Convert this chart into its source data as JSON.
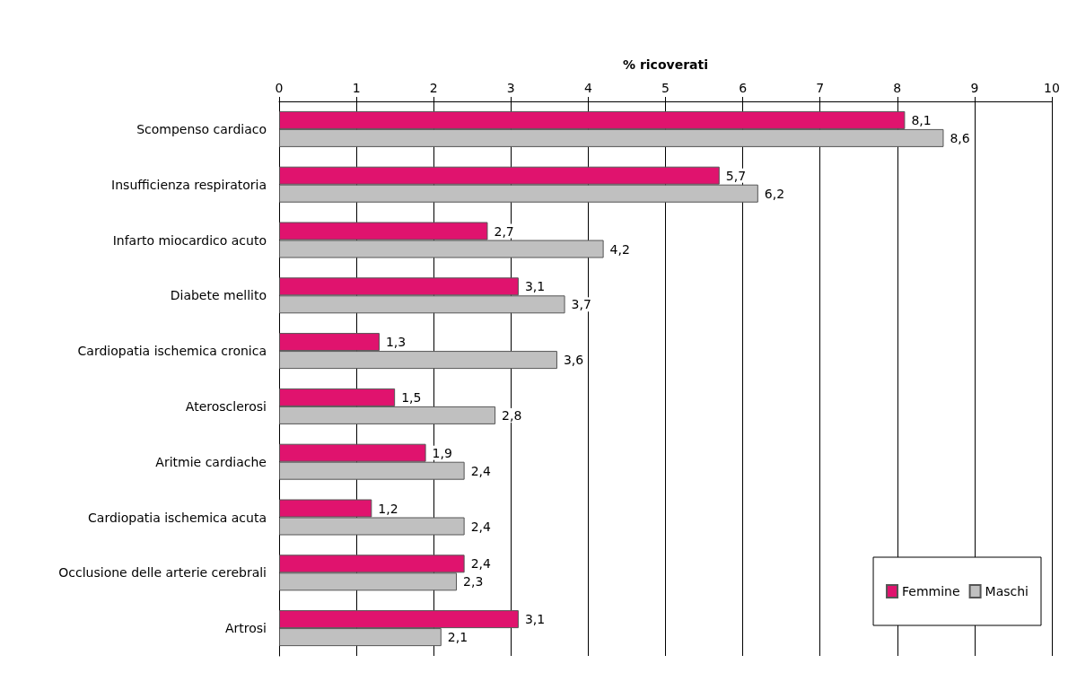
{
  "chart_data": {
    "type": "bar",
    "orientation": "horizontal",
    "xlabel": "% ricoverati",
    "categories": [
      "Scompenso cardiaco",
      "Insufficienza respiratoria",
      "Infarto miocardico acuto",
      "Diabete mellito",
      "Cardiopatia ischemica cronica",
      "Aterosclerosi",
      "Aritmie cardiache",
      "Cardiopatia ischemica acuta",
      "Occlusione delle arterie cerebrali",
      "Artrosi"
    ],
    "series": [
      {
        "name": "Femmine",
        "color": "#e0136e",
        "values": [
          8.1,
          5.7,
          2.7,
          3.1,
          1.3,
          1.5,
          1.9,
          1.2,
          2.4,
          3.1
        ],
        "value_labels": [
          "8,1",
          "5,7",
          "2,7",
          "3,1",
          "1,3",
          "1,5",
          "1,9",
          "1,2",
          "2,4",
          "3,1"
        ]
      },
      {
        "name": "Maschi",
        "color": "#c0c0c0",
        "values": [
          8.6,
          6.2,
          4.2,
          3.7,
          3.6,
          2.8,
          2.4,
          2.4,
          2.3,
          2.1
        ],
        "value_labels": [
          "8,6",
          "6,2",
          "4,2",
          "3,7",
          "3,6",
          "2,8",
          "2,4",
          "2,4",
          "2,3",
          "2,1"
        ]
      }
    ],
    "xlim": [
      0,
      10
    ],
    "xticks": [
      0,
      1,
      2,
      3,
      4,
      5,
      6,
      7,
      8,
      9,
      10
    ],
    "grid": "x",
    "legend": "bottom right"
  }
}
